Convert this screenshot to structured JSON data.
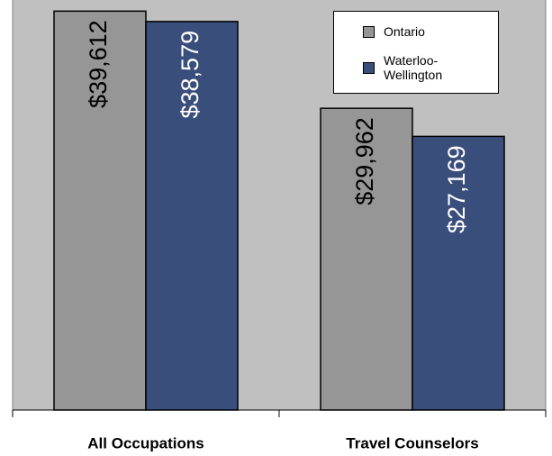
{
  "chart_data": {
    "type": "bar",
    "categories": [
      "All Occupations",
      "Travel Counselors"
    ],
    "series": [
      {
        "name": "Ontario",
        "color": "#969696",
        "label_color": "#000000",
        "values": [
          39612,
          29962
        ],
        "value_labels": [
          "$39,612",
          "$29,962"
        ]
      },
      {
        "name": "Waterloo- Wellington",
        "color": "#3a4e7c",
        "label_color": "#ffffff",
        "values": [
          38579,
          27169
        ],
        "value_labels": [
          "$38,579",
          "$27,169"
        ]
      }
    ],
    "ylim": [
      0,
      40000
    ],
    "background": "#c0c0c0",
    "legend": "upper right"
  }
}
